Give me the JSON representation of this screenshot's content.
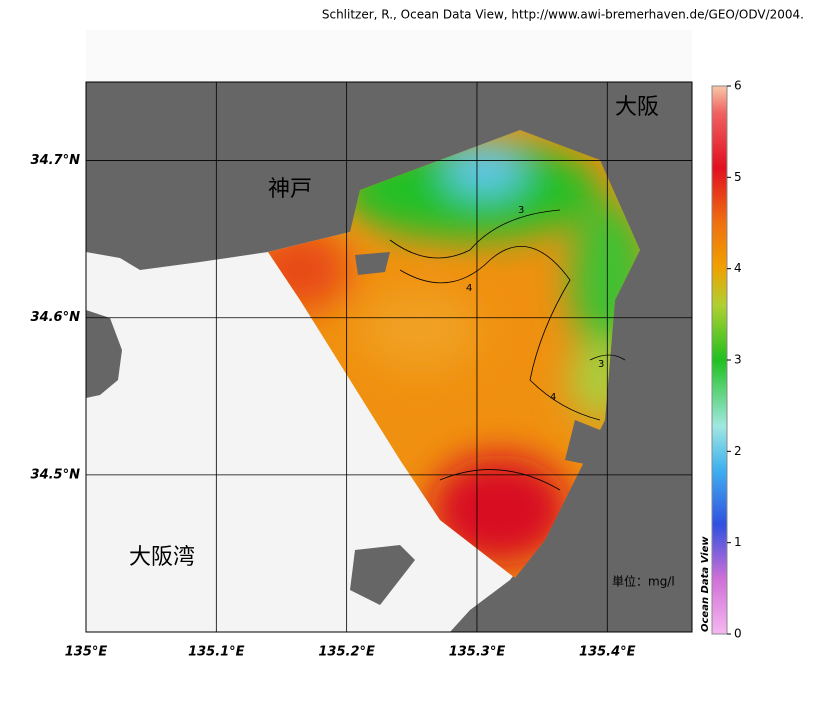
{
  "credit": "Schlitzer, R., Ocean Data View, http://www.awi-bremerhaven.de/GEO/ODV/2004.",
  "map": {
    "xlim": [
      135.0,
      135.465
    ],
    "ylim": [
      34.4,
      34.75
    ],
    "xticks": [
      {
        "value": 135.0,
        "label": "135°E"
      },
      {
        "value": 135.1,
        "label": "135.1°E"
      },
      {
        "value": 135.2,
        "label": "135.2°E"
      },
      {
        "value": 135.3,
        "label": "135.3°E"
      },
      {
        "value": 135.4,
        "label": "135.4°E"
      }
    ],
    "yticks": [
      {
        "value": 34.5,
        "label": "34.5°N"
      },
      {
        "value": 34.6,
        "label": "34.6°N"
      },
      {
        "value": 34.7,
        "label": "34.7°N"
      }
    ],
    "places": [
      "神戸",
      "大阪",
      "大阪湾"
    ],
    "unit": "単位：mg/l",
    "contour_labels": [
      "3",
      "4",
      "3",
      "4"
    ]
  },
  "colorbar": {
    "title": "Ocean Data View",
    "lim": [
      0,
      6
    ],
    "ticks": [
      0,
      1,
      2,
      3,
      4,
      5,
      6
    ]
  }
}
